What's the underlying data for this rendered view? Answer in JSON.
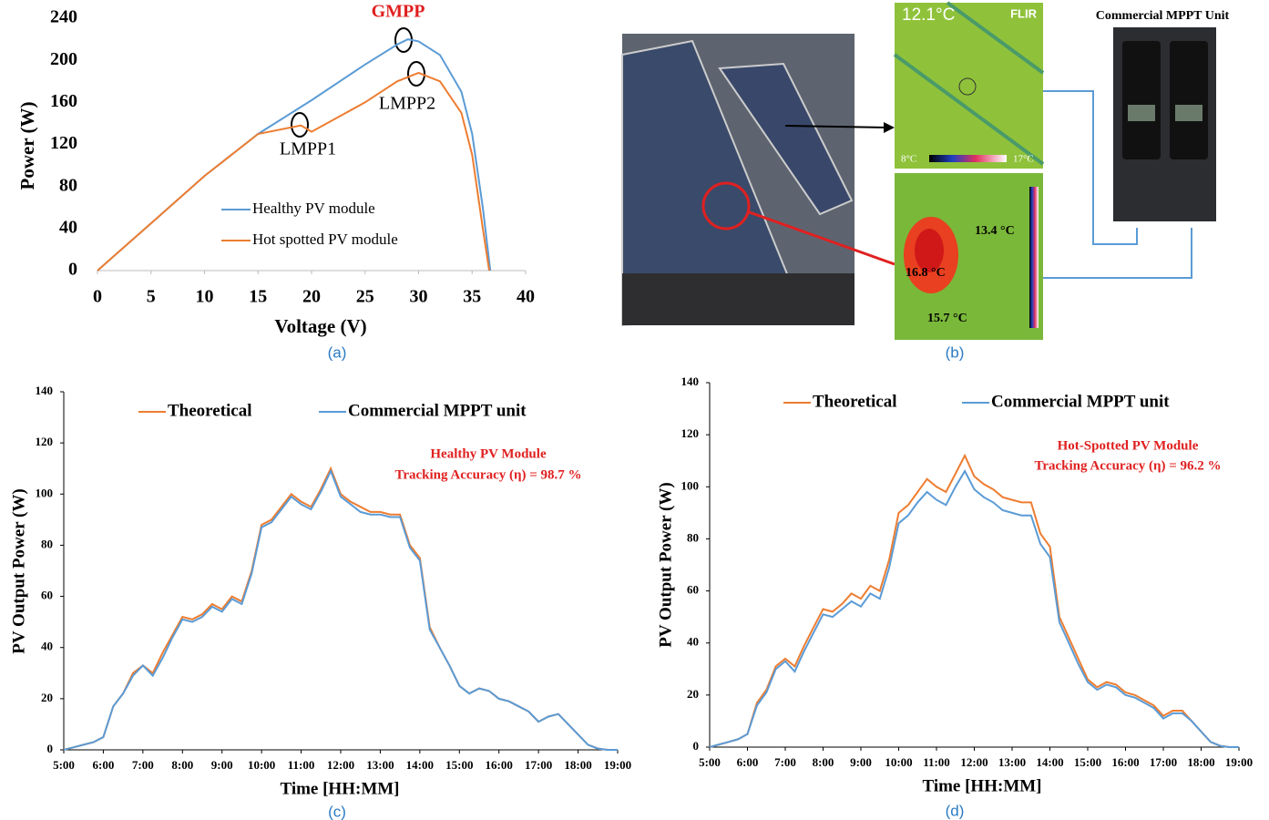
{
  "chart_data": [
    {
      "type": "line",
      "caption": "(a)",
      "xlabel": "Voltage (V)",
      "ylabel": "Power (W)",
      "xlim": [
        0,
        40
      ],
      "ylim": [
        0,
        240
      ],
      "xticks": [
        0,
        5,
        10,
        15,
        20,
        25,
        30,
        35,
        40
      ],
      "yticks": [
        0,
        40,
        80,
        120,
        160,
        200,
        240
      ],
      "series": [
        {
          "name": "Healthy PV module",
          "color": "#5b9bd5",
          "x": [
            0,
            5,
            10,
            15,
            20,
            25,
            28,
            29,
            30,
            32,
            34,
            35,
            36,
            36.7
          ],
          "values": [
            0,
            45,
            90,
            130,
            162,
            196,
            215,
            220,
            218,
            205,
            170,
            130,
            60,
            0
          ]
        },
        {
          "name": "Hot spotted PV module",
          "color": "#ed7d31",
          "x": [
            0,
            5,
            10,
            15,
            19,
            20,
            25,
            28,
            30,
            32,
            34,
            35,
            36,
            36.6
          ],
          "values": [
            0,
            45,
            90,
            130,
            138,
            132,
            160,
            180,
            188,
            180,
            150,
            110,
            40,
            0
          ]
        }
      ],
      "annotations": [
        "GMPP",
        "LMPP1",
        "LMPP2"
      ]
    },
    {
      "type": "line",
      "caption": "(c)",
      "xlabel": "Time [HH:MM]",
      "ylabel": "PV Output Power (W)",
      "xlim": [
        5,
        19
      ],
      "ylim": [
        0,
        140
      ],
      "xticks": [
        {
          "value": 5,
          "label": "5:00"
        },
        {
          "value": 6,
          "label": "6:00"
        },
        {
          "value": 7,
          "label": "7:00"
        },
        {
          "value": 8,
          "label": "8:00"
        },
        {
          "value": 9,
          "label": "9:00"
        },
        {
          "value": 10,
          "label": "10:00"
        },
        {
          "value": 11,
          "label": "11:00"
        },
        {
          "value": 12,
          "label": "12:00"
        },
        {
          "value": 13,
          "label": "13:00"
        },
        {
          "value": 14,
          "label": "14:00"
        },
        {
          "value": 15,
          "label": "15:00"
        },
        {
          "value": 16,
          "label": "16:00"
        },
        {
          "value": 17,
          "label": "17:00"
        },
        {
          "value": 18,
          "label": "18:00"
        },
        {
          "value": 19,
          "label": "19:00"
        }
      ],
      "yticks": [
        0,
        20,
        40,
        60,
        80,
        100,
        120,
        140
      ],
      "x": [
        5,
        5.25,
        5.5,
        5.75,
        6,
        6.25,
        6.5,
        6.75,
        7,
        7.25,
        7.5,
        7.75,
        8,
        8.25,
        8.5,
        8.75,
        9,
        9.25,
        9.5,
        9.75,
        10,
        10.25,
        10.5,
        10.75,
        11,
        11.25,
        11.5,
        11.75,
        12,
        12.25,
        12.5,
        12.75,
        13,
        13.25,
        13.5,
        13.75,
        14,
        14.25,
        14.5,
        14.75,
        15,
        15.25,
        15.5,
        15.75,
        16,
        16.25,
        16.5,
        16.75,
        17,
        17.25,
        17.5,
        17.75,
        18,
        18.25,
        18.5,
        18.75,
        19
      ],
      "series": [
        {
          "name": "Theoretical",
          "color": "#ed7d31",
          "values": [
            0,
            1,
            2,
            3,
            5,
            17,
            22,
            30,
            33,
            30,
            38,
            45,
            52,
            51,
            53,
            57,
            55,
            60,
            58,
            70,
            88,
            90,
            95,
            100,
            97,
            95,
            102,
            110,
            100,
            97,
            95,
            93,
            93,
            92,
            92,
            80,
            75,
            48,
            40,
            33,
            25,
            22,
            24,
            23,
            20,
            19,
            17,
            15,
            11,
            13,
            14,
            10,
            6,
            2,
            0.5,
            0,
            0
          ]
        },
        {
          "name": "Commercial MPPT unit",
          "color": "#5b9bd5",
          "values": [
            0,
            1,
            2,
            3,
            5,
            17,
            22,
            29,
            33,
            29,
            36,
            44,
            51,
            50,
            52,
            56,
            54,
            59,
            57,
            69,
            87,
            89,
            94,
            99,
            96,
            94,
            101,
            109,
            99,
            96,
            93,
            92,
            92,
            91,
            91,
            79,
            74,
            47,
            40,
            33,
            25,
            22,
            24,
            23,
            20,
            19,
            17,
            15,
            11,
            13,
            14,
            10,
            6,
            2,
            0.5,
            0,
            0
          ]
        }
      ],
      "annotations": [
        "Healthy PV Module",
        "Tracking Accuracy (η) = 98.7 %"
      ]
    },
    {
      "type": "line",
      "caption": "(d)",
      "xlabel": "Time [HH:MM]",
      "ylabel": "PV Output Power (W)",
      "xlim": [
        5,
        19
      ],
      "ylim": [
        0,
        140
      ],
      "xticks": [
        {
          "value": 5,
          "label": "5:00"
        },
        {
          "value": 6,
          "label": "6:00"
        },
        {
          "value": 7,
          "label": "7:00"
        },
        {
          "value": 8,
          "label": "8:00"
        },
        {
          "value": 9,
          "label": "9:00"
        },
        {
          "value": 10,
          "label": "10:00"
        },
        {
          "value": 11,
          "label": "11:00"
        },
        {
          "value": 12,
          "label": "12:00"
        },
        {
          "value": 13,
          "label": "13:00"
        },
        {
          "value": 14,
          "label": "14:00"
        },
        {
          "value": 15,
          "label": "15:00"
        },
        {
          "value": 16,
          "label": "16:00"
        },
        {
          "value": 17,
          "label": "17:00"
        },
        {
          "value": 18,
          "label": "18:00"
        },
        {
          "value": 19,
          "label": "19:00"
        }
      ],
      "yticks": [
        0,
        20,
        40,
        60,
        80,
        100,
        120,
        140
      ],
      "x": [
        5,
        5.25,
        5.5,
        5.75,
        6,
        6.25,
        6.5,
        6.75,
        7,
        7.25,
        7.5,
        7.75,
        8,
        8.25,
        8.5,
        8.75,
        9,
        9.25,
        9.5,
        9.75,
        10,
        10.25,
        10.5,
        10.75,
        11,
        11.25,
        11.5,
        11.75,
        12,
        12.25,
        12.5,
        12.75,
        13,
        13.25,
        13.5,
        13.75,
        14,
        14.25,
        14.5,
        14.75,
        15,
        15.25,
        15.5,
        15.75,
        16,
        16.25,
        16.5,
        16.75,
        17,
        17.25,
        17.5,
        17.75,
        18,
        18.25,
        18.5,
        18.75,
        19
      ],
      "series": [
        {
          "name": "Theoretical",
          "color": "#ed7d31",
          "values": [
            0,
            1,
            2,
            3,
            5,
            17,
            22,
            31,
            34,
            31,
            39,
            46,
            53,
            52,
            55,
            59,
            57,
            62,
            60,
            72,
            90,
            93,
            98,
            103,
            100,
            98,
            105,
            112,
            104,
            101,
            99,
            96,
            95,
            94,
            94,
            82,
            77,
            50,
            42,
            34,
            26,
            23,
            25,
            24,
            21,
            20,
            18,
            16,
            12,
            14,
            14,
            10,
            6,
            2,
            0.5,
            0,
            0
          ]
        },
        {
          "name": "Commercial MPPT unit",
          "color": "#5b9bd5",
          "values": [
            0,
            1,
            2,
            3,
            5,
            16,
            21,
            30,
            33,
            29,
            37,
            44,
            51,
            50,
            53,
            56,
            54,
            59,
            57,
            69,
            86,
            89,
            94,
            98,
            95,
            93,
            100,
            106,
            99,
            96,
            94,
            91,
            90,
            89,
            89,
            78,
            73,
            48,
            40,
            32,
            25,
            22,
            24,
            23,
            20,
            19,
            17,
            15,
            11,
            13,
            13,
            10,
            6,
            2,
            0.5,
            0,
            0
          ]
        }
      ],
      "annotations": [
        "Hot-Spotted PV Module",
        "Tracking Accuracy (η) = 96.2 %"
      ]
    }
  ],
  "photo_panel": {
    "caption": "(b)",
    "unit_title": "Commercial MPPT Unit",
    "thermal_top": {
      "temp": "12.1°C",
      "brand": "FLIR",
      "scale_min": "8°C",
      "scale_max": "17°C"
    },
    "thermal_bottom": {
      "labels": [
        "13.4 °C",
        "16.8 °C",
        "15.7 °C"
      ]
    }
  }
}
